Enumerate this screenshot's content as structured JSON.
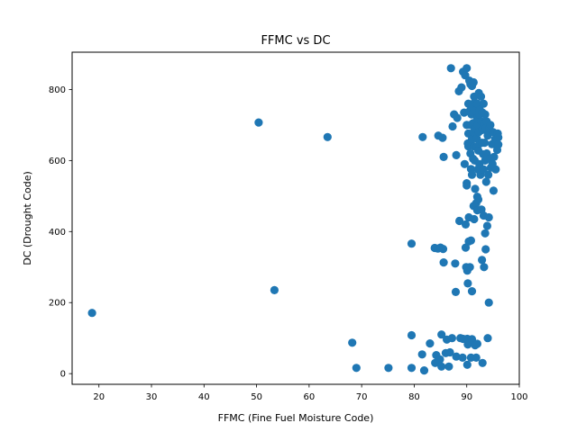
{
  "chart_data": {
    "type": "scatter",
    "title": "FFMC vs DC",
    "xlabel": "FFMC (Fine Fuel Moisture Code)",
    "ylabel": "DC (Drought Code)",
    "xlim": [
      14.9,
      100.0
    ],
    "ylim": [
      -30,
      905
    ],
    "xticks": [
      20,
      30,
      40,
      50,
      60,
      70,
      80,
      90,
      100
    ],
    "yticks": [
      0,
      200,
      400,
      600,
      800
    ],
    "grid": false,
    "marker_color": "#1f77b4",
    "series": [
      {
        "points": [
          [
            18.7,
            171
          ],
          [
            50.4,
            707
          ],
          [
            53.4,
            235
          ],
          [
            63.5,
            666
          ],
          [
            68.2,
            87
          ],
          [
            69.0,
            16
          ],
          [
            75.1,
            16
          ],
          [
            79.5,
            366
          ],
          [
            79.5,
            108
          ],
          [
            79.5,
            16
          ],
          [
            81.5,
            54
          ],
          [
            81.6,
            666
          ],
          [
            81.9,
            9
          ],
          [
            83.0,
            85
          ],
          [
            83.9,
            354
          ],
          [
            84.0,
            30
          ],
          [
            84.2,
            52
          ],
          [
            84.5,
            352
          ],
          [
            84.6,
            670
          ],
          [
            84.9,
            40
          ],
          [
            85.0,
            355
          ],
          [
            85.2,
            110
          ],
          [
            85.2,
            20
          ],
          [
            85.4,
            664
          ],
          [
            85.5,
            351
          ],
          [
            85.6,
            610
          ],
          [
            85.6,
            313
          ],
          [
            86.0,
            58
          ],
          [
            86.2,
            96
          ],
          [
            86.6,
            20
          ],
          [
            86.8,
            60
          ],
          [
            87.0,
            860
          ],
          [
            87.2,
            100
          ],
          [
            87.3,
            696
          ],
          [
            87.6,
            730
          ],
          [
            87.8,
            310
          ],
          [
            87.9,
            230
          ],
          [
            88.0,
            615
          ],
          [
            88.0,
            48
          ],
          [
            88.2,
            720
          ],
          [
            88.5,
            795
          ],
          [
            88.6,
            430
          ],
          [
            88.8,
            100
          ],
          [
            89.0,
            806
          ],
          [
            89.2,
            45
          ],
          [
            89.3,
            850
          ],
          [
            89.3,
            98
          ],
          [
            89.5,
            735
          ],
          [
            89.6,
            590
          ],
          [
            89.7,
            840
          ],
          [
            89.8,
            420
          ],
          [
            89.8,
            355
          ],
          [
            89.9,
            300
          ],
          [
            90.0,
            860
          ],
          [
            90.0,
            700
          ],
          [
            90.0,
            536
          ],
          [
            90.0,
            530
          ],
          [
            90.1,
            290
          ],
          [
            90.1,
            98
          ],
          [
            90.1,
            25
          ],
          [
            90.2,
            648
          ],
          [
            90.2,
            254
          ],
          [
            90.2,
            82
          ],
          [
            90.3,
            760
          ],
          [
            90.3,
            676
          ],
          [
            90.3,
            640
          ],
          [
            90.4,
            440
          ],
          [
            90.4,
            372
          ],
          [
            90.5,
            825
          ],
          [
            90.6,
            740
          ],
          [
            90.6,
            300
          ],
          [
            90.7,
            815
          ],
          [
            90.7,
            700
          ],
          [
            90.7,
            620
          ],
          [
            90.8,
            576
          ],
          [
            90.8,
            375
          ],
          [
            90.8,
            45
          ],
          [
            90.9,
            730
          ],
          [
            91.0,
            810
          ],
          [
            91.0,
            660
          ],
          [
            91.0,
            560
          ],
          [
            91.0,
            232
          ],
          [
            91.0,
            97
          ],
          [
            91.1,
            750
          ],
          [
            91.2,
            705
          ],
          [
            91.2,
            605
          ],
          [
            91.3,
            820
          ],
          [
            91.3,
            680
          ],
          [
            91.3,
            472
          ],
          [
            91.4,
            780
          ],
          [
            91.4,
            640
          ],
          [
            91.4,
            435
          ],
          [
            91.5,
            764
          ],
          [
            91.5,
            600
          ],
          [
            91.6,
            690
          ],
          [
            91.6,
            520
          ],
          [
            91.6,
            80
          ],
          [
            91.7,
            740
          ],
          [
            91.8,
            480
          ],
          [
            91.8,
            45
          ],
          [
            91.9,
            662
          ],
          [
            92.0,
            760
          ],
          [
            92.0,
            720
          ],
          [
            92.0,
            640
          ],
          [
            92.0,
            498
          ],
          [
            92.0,
            460
          ],
          [
            92.0,
            84
          ],
          [
            92.1,
            700
          ],
          [
            92.1,
            575
          ],
          [
            92.2,
            628
          ],
          [
            92.2,
            490
          ],
          [
            92.3,
            790
          ],
          [
            92.3,
            680
          ],
          [
            92.4,
            730
          ],
          [
            92.4,
            590
          ],
          [
            92.5,
            742
          ],
          [
            92.5,
            648
          ],
          [
            92.6,
            560
          ],
          [
            92.7,
            780
          ],
          [
            92.8,
            710
          ],
          [
            92.8,
            462
          ],
          [
            92.9,
            650
          ],
          [
            92.9,
            320
          ],
          [
            93.0,
            735
          ],
          [
            93.0,
            686
          ],
          [
            93.0,
            30
          ],
          [
            93.1,
            618
          ],
          [
            93.2,
            760
          ],
          [
            93.2,
            575
          ],
          [
            93.2,
            445
          ],
          [
            93.3,
            705
          ],
          [
            93.3,
            300
          ],
          [
            93.4,
            650
          ],
          [
            93.5,
            730
          ],
          [
            93.5,
            600
          ],
          [
            93.5,
            395
          ],
          [
            93.6,
            690
          ],
          [
            93.6,
            350
          ],
          [
            93.7,
            540
          ],
          [
            93.8,
            710
          ],
          [
            93.8,
            620
          ],
          [
            93.9,
            416
          ],
          [
            94.0,
            670
          ],
          [
            94.0,
            100
          ],
          [
            94.1,
            560
          ],
          [
            94.2,
            440
          ],
          [
            94.2,
            200
          ],
          [
            94.3,
            690
          ],
          [
            94.4,
            605
          ],
          [
            94.5,
            700
          ],
          [
            94.6,
            580
          ],
          [
            94.8,
            646
          ],
          [
            94.9,
            590
          ],
          [
            95.0,
            680
          ],
          [
            95.1,
            515
          ],
          [
            95.2,
            610
          ],
          [
            95.4,
            660
          ],
          [
            95.5,
            575
          ],
          [
            95.8,
            630
          ],
          [
            95.9,
            676
          ],
          [
            96.0,
            665
          ],
          [
            96.0,
            645
          ]
        ]
      }
    ]
  }
}
